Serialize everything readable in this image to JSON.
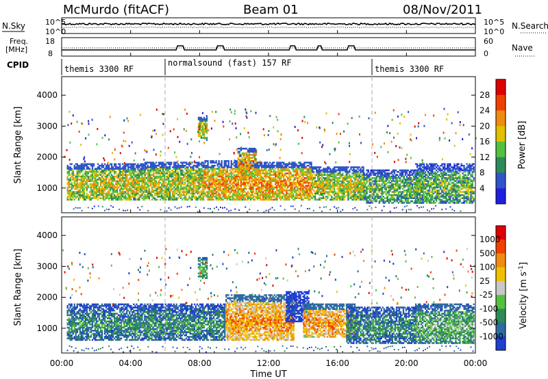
{
  "header": {
    "station": "McMurdo (fitACF)",
    "beam": "Beam 01",
    "date": "08/Nov/2011"
  },
  "params": {
    "nsky_label": "N.Sky",
    "nsearch_label": "N.Search",
    "freq_label_1": "Freq.",
    "freq_label_2": "[MHz]",
    "nave_label": "Nave",
    "cpid_label": "CPID",
    "noise_ticks_left": [
      "10^5",
      "10^0"
    ],
    "noise_ticks_right": [
      "10^5",
      "10^0"
    ],
    "freq_ticks": [
      "18",
      "8"
    ],
    "nave_ticks": [
      "60",
      "0"
    ]
  },
  "cpid_segments": [
    {
      "label": "themis 3300 RF",
      "start_hour": 0
    },
    {
      "label": "normalsound (fast) 157 RF",
      "start_hour": 6
    },
    {
      "label": "themis 3300 RF",
      "start_hour": 18
    }
  ],
  "chart_data": [
    {
      "type": "heatmap",
      "name": "power",
      "ylabel": "Slant Range [km]",
      "yticks": [
        "1000",
        "2000",
        "3000",
        "4000"
      ],
      "ylim": [
        200,
        4600
      ],
      "xlim_hours": [
        0,
        24
      ],
      "colorbar_label": "Power [dB]",
      "colorbar_ticks": [
        "28",
        "24",
        "20",
        "16",
        "12",
        "8",
        "4"
      ],
      "colors": [
        "#1f1fe0",
        "#2f55c8",
        "#2f8a5a",
        "#55c040",
        "#e0c000",
        "#f08a10",
        "#f04000",
        "#e00000"
      ],
      "blobs": [
        {
          "t0": 0.3,
          "t1": 4.8,
          "r0": 600,
          "r1": 1800,
          "level": 4
        },
        {
          "t0": 4.8,
          "t1": 8.2,
          "r0": 600,
          "r1": 1850,
          "level": 4
        },
        {
          "t0": 7.9,
          "t1": 8.4,
          "r0": 2600,
          "r1": 3300,
          "level": 4
        },
        {
          "t0": 8.2,
          "t1": 11.0,
          "r0": 600,
          "r1": 1900,
          "level": 5
        },
        {
          "t0": 10.2,
          "t1": 11.3,
          "r0": 1400,
          "r1": 2300,
          "level": 5
        },
        {
          "t0": 11.0,
          "t1": 14.5,
          "r0": 600,
          "r1": 1850,
          "level": 5
        },
        {
          "t0": 14.5,
          "t1": 17.5,
          "r0": 600,
          "r1": 1700,
          "level": 4
        },
        {
          "t0": 17.5,
          "t1": 21.0,
          "r0": 500,
          "r1": 1600,
          "level": 3
        },
        {
          "t0": 20.5,
          "t1": 23.9,
          "r0": 500,
          "r1": 1800,
          "level": 3
        }
      ]
    },
    {
      "type": "heatmap",
      "name": "velocity",
      "ylabel": "Slant Range [km]",
      "yticks": [
        "1000",
        "2000",
        "3000",
        "4000"
      ],
      "ylim": [
        200,
        4600
      ],
      "xlabel": "Time UT",
      "xticks": [
        "00:00",
        "04:00",
        "08:00",
        "12:00",
        "16:00",
        "20:00",
        "00:00"
      ],
      "xlim_hours": [
        0,
        24
      ],
      "colorbar_label": "Velocity [m s^-1]",
      "colorbar_ticks": [
        "1000",
        "500",
        "100",
        "25",
        "-25",
        "-100",
        "-500",
        "-1000"
      ],
      "colors": [
        "#1f3fd0",
        "#2f6aa0",
        "#2e8a55",
        "#55c040",
        "#c8c8c8",
        "#f0c000",
        "#f08a10",
        "#f04000",
        "#e00000"
      ],
      "blobs": [
        {
          "t0": 0.3,
          "t1": 9.5,
          "r0": 600,
          "r1": 1800,
          "level": 2
        },
        {
          "t0": 7.9,
          "t1": 8.4,
          "r0": 2600,
          "r1": 3300,
          "level": 3
        },
        {
          "t0": 9.5,
          "t1": 13.5,
          "r0": 600,
          "r1": 2100,
          "level": 6
        },
        {
          "t0": 13.0,
          "t1": 14.3,
          "r0": 1200,
          "r1": 2200,
          "level": 0
        },
        {
          "t0": 14.0,
          "t1": 17.0,
          "r0": 700,
          "r1": 1800,
          "level": 6
        },
        {
          "t0": 16.5,
          "t1": 20.5,
          "r0": 500,
          "r1": 1700,
          "level": 2
        },
        {
          "t0": 20.5,
          "t1": 23.9,
          "r0": 500,
          "r1": 1800,
          "level": 3
        }
      ]
    }
  ]
}
